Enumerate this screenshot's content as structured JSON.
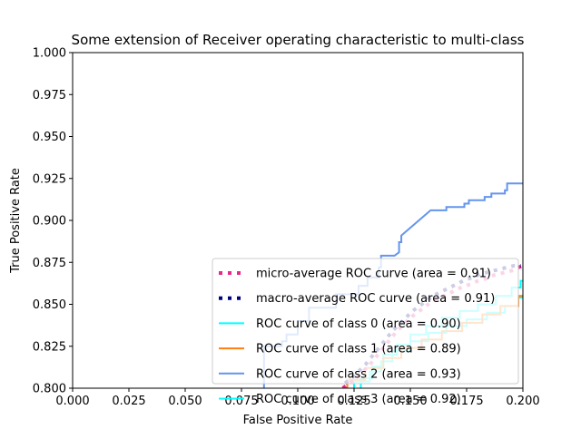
{
  "chart_data": {
    "type": "line",
    "title": "Some extension of Receiver operating characteristic to multi-class",
    "xlabel": "False Positive Rate",
    "ylabel": "True Positive Rate",
    "xlim": [
      0.0,
      0.2
    ],
    "ylim": [
      0.8,
      1.0
    ],
    "x_ticks": [
      "0.000",
      "0.025",
      "0.050",
      "0.075",
      "0.100",
      "0.125",
      "0.150",
      "0.175",
      "0.200"
    ],
    "y_ticks": [
      "0.800",
      "0.825",
      "0.850",
      "0.875",
      "0.900",
      "0.925",
      "0.950",
      "0.975",
      "1.000"
    ],
    "grid": false,
    "legend_position": "lower right",
    "series": [
      {
        "name": "micro-average ROC curve (area = 0.91)",
        "color": "#e7298a",
        "style": "dotted",
        "x": [
          0.12,
          0.123,
          0.126,
          0.129,
          0.132,
          0.135,
          0.138,
          0.141,
          0.144,
          0.147,
          0.15,
          0.153,
          0.156,
          0.159,
          0.162,
          0.165,
          0.168,
          0.171,
          0.174,
          0.177,
          0.18,
          0.183,
          0.186,
          0.189,
          0.192,
          0.195,
          0.198,
          0.2
        ],
        "y": [
          0.8,
          0.803,
          0.806,
          0.81,
          0.814,
          0.819,
          0.824,
          0.829,
          0.834,
          0.838,
          0.842,
          0.845,
          0.848,
          0.851,
          0.853,
          0.855,
          0.857,
          0.859,
          0.861,
          0.862,
          0.864,
          0.865,
          0.867,
          0.868,
          0.869,
          0.87,
          0.872,
          0.873
        ]
      },
      {
        "name": "macro-average ROC curve (area = 0.91)",
        "color": "#000080",
        "style": "dotted",
        "x": [
          0.121,
          0.124,
          0.127,
          0.13,
          0.133,
          0.136,
          0.139,
          0.142,
          0.145,
          0.148,
          0.151,
          0.154,
          0.157,
          0.16,
          0.163,
          0.166,
          0.169,
          0.172,
          0.175,
          0.178,
          0.181,
          0.184,
          0.187,
          0.19,
          0.193,
          0.196,
          0.199
        ],
        "y": [
          0.803,
          0.806,
          0.81,
          0.814,
          0.819,
          0.824,
          0.829,
          0.834,
          0.838,
          0.842,
          0.846,
          0.849,
          0.852,
          0.855,
          0.857,
          0.859,
          0.861,
          0.863,
          0.865,
          0.866,
          0.868,
          0.869,
          0.87,
          0.871,
          0.872,
          0.873,
          0.873
        ]
      },
      {
        "name": "ROC curve of class 0 (area = 0.90)",
        "color": "#00ffff",
        "style": "solid",
        "x": [
          0.125,
          0.125,
          0.132,
          0.132,
          0.137,
          0.137,
          0.142,
          0.142,
          0.15,
          0.15,
          0.158,
          0.158,
          0.166,
          0.166,
          0.175,
          0.175,
          0.184,
          0.184,
          0.192,
          0.192,
          0.198,
          0.198,
          0.2
        ],
        "y": [
          0.8,
          0.804,
          0.804,
          0.81,
          0.81,
          0.816,
          0.816,
          0.822,
          0.822,
          0.828,
          0.828,
          0.833,
          0.833,
          0.837,
          0.837,
          0.841,
          0.841,
          0.845,
          0.845,
          0.849,
          0.849,
          0.854,
          0.854
        ]
      },
      {
        "name": "ROC curve of class 1 (area = 0.89)",
        "color": "#ff7f0e",
        "style": "solid",
        "x": [
          0.122,
          0.122,
          0.13,
          0.13,
          0.138,
          0.138,
          0.146,
          0.146,
          0.155,
          0.155,
          0.164,
          0.164,
          0.173,
          0.173,
          0.182,
          0.182,
          0.19,
          0.19,
          0.198,
          0.198,
          0.2
        ],
        "y": [
          0.8,
          0.805,
          0.805,
          0.812,
          0.812,
          0.818,
          0.818,
          0.824,
          0.824,
          0.829,
          0.829,
          0.834,
          0.834,
          0.839,
          0.839,
          0.844,
          0.844,
          0.849,
          0.849,
          0.855,
          0.855
        ]
      },
      {
        "name": "ROC curve of class 2 (area = 0.93)",
        "color": "#6495ed",
        "style": "solid",
        "x": [
          0.085,
          0.085,
          0.093,
          0.093,
          0.095,
          0.095,
          0.1,
          0.1,
          0.105,
          0.105,
          0.117,
          0.117,
          0.127,
          0.127,
          0.131,
          0.131,
          0.136,
          0.136,
          0.137,
          0.137,
          0.143,
          0.145,
          0.145,
          0.146,
          0.146,
          0.159,
          0.159,
          0.166,
          0.166,
          0.172,
          0.172,
          0.174,
          0.174,
          0.176,
          0.176,
          0.183,
          0.183,
          0.186,
          0.186,
          0.19,
          0.19,
          0.192,
          0.192,
          0.193,
          0.193,
          0.2
        ],
        "y": [
          0.8,
          0.825,
          0.825,
          0.828,
          0.828,
          0.832,
          0.832,
          0.84,
          0.84,
          0.848,
          0.848,
          0.856,
          0.856,
          0.861,
          0.861,
          0.866,
          0.866,
          0.872,
          0.872,
          0.879,
          0.879,
          0.881,
          0.887,
          0.887,
          0.891,
          0.906,
          0.906,
          0.906,
          0.908,
          0.908,
          0.908,
          0.908,
          0.91,
          0.91,
          0.912,
          0.912,
          0.914,
          0.914,
          0.916,
          0.916,
          0.916,
          0.916,
          0.918,
          0.918,
          0.922,
          0.922
        ]
      },
      {
        "name": "ROC curve of class 3 (area = 0.92)",
        "color": "#00ffff",
        "style": "solid",
        "x": [
          0.128,
          0.128,
          0.133,
          0.133,
          0.138,
          0.138,
          0.144,
          0.144,
          0.15,
          0.15,
          0.157,
          0.157,
          0.164,
          0.164,
          0.172,
          0.172,
          0.18,
          0.18,
          0.188,
          0.188,
          0.195,
          0.195,
          0.199,
          0.199,
          0.2
        ],
        "y": [
          0.8,
          0.806,
          0.806,
          0.813,
          0.813,
          0.82,
          0.82,
          0.826,
          0.826,
          0.832,
          0.832,
          0.837,
          0.837,
          0.842,
          0.842,
          0.846,
          0.846,
          0.85,
          0.85,
          0.855,
          0.855,
          0.86,
          0.86,
          0.864,
          0.864
        ]
      }
    ]
  }
}
